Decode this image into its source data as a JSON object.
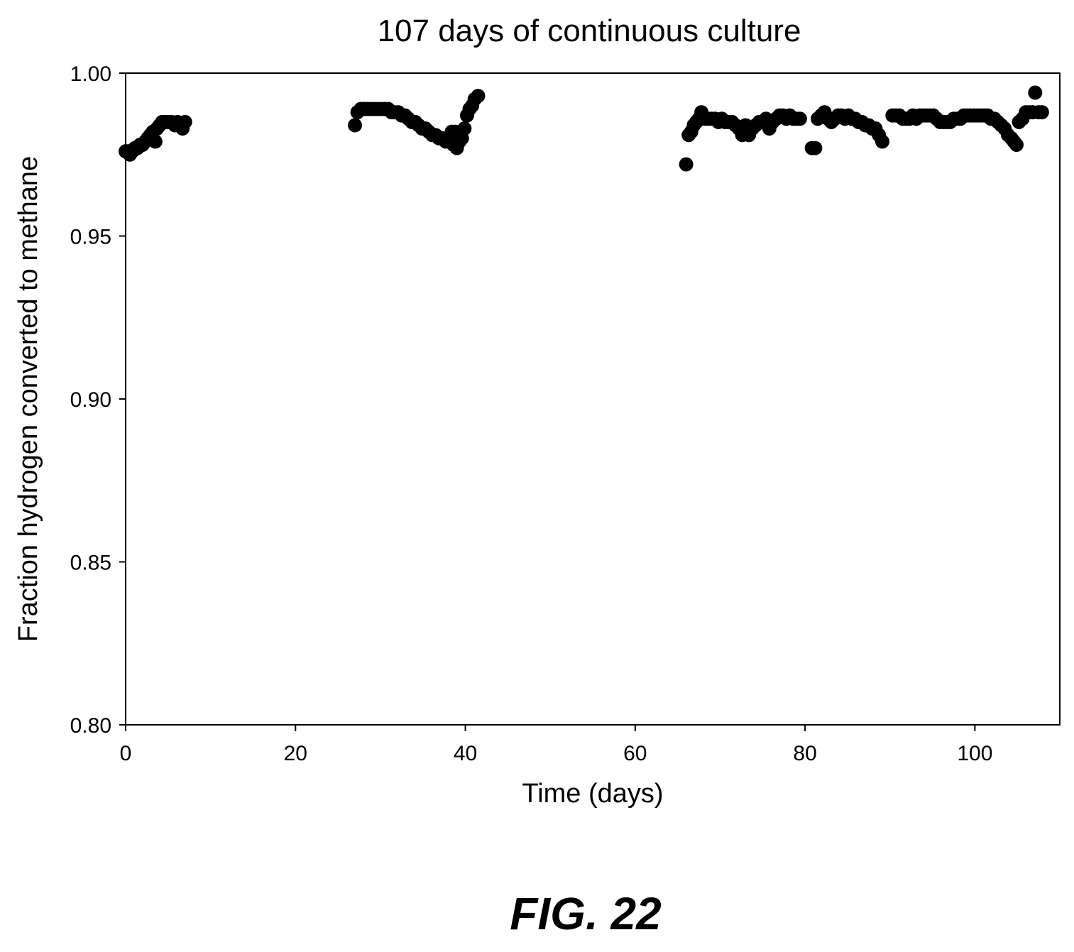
{
  "caption": "FIG. 22",
  "chart_data": {
    "type": "scatter",
    "title": "107 days of continuous culture",
    "xlabel": "Time (days)",
    "ylabel": "Fraction hydrogen converted to methane",
    "xlim": [
      0,
      110
    ],
    "ylim": [
      0.8,
      1.0
    ],
    "xticks": [
      "0",
      "20",
      "40",
      "60",
      "80",
      "100"
    ],
    "yticks": [
      "0.80",
      "0.85",
      "0.90",
      "0.95",
      "1.00"
    ],
    "grid": false,
    "marker_color": "#000000",
    "points": [
      [
        0.0,
        0.976
      ],
      [
        0.3,
        0.976
      ],
      [
        0.5,
        0.975
      ],
      [
        0.8,
        0.976
      ],
      [
        1.1,
        0.977
      ],
      [
        1.4,
        0.977
      ],
      [
        1.7,
        0.978
      ],
      [
        2.0,
        0.978
      ],
      [
        2.3,
        0.979
      ],
      [
        2.6,
        0.98
      ],
      [
        2.9,
        0.981
      ],
      [
        3.2,
        0.982
      ],
      [
        3.5,
        0.979
      ],
      [
        3.7,
        0.983
      ],
      [
        4.0,
        0.984
      ],
      [
        4.3,
        0.985
      ],
      [
        4.6,
        0.985
      ],
      [
        5.0,
        0.985
      ],
      [
        5.4,
        0.985
      ],
      [
        5.8,
        0.984
      ],
      [
        6.1,
        0.985
      ],
      [
        6.4,
        0.984
      ],
      [
        6.7,
        0.983
      ],
      [
        7.0,
        0.985
      ],
      [
        27.0,
        0.984
      ],
      [
        27.3,
        0.988
      ],
      [
        27.7,
        0.989
      ],
      [
        28.1,
        0.989
      ],
      [
        28.5,
        0.989
      ],
      [
        28.9,
        0.989
      ],
      [
        29.3,
        0.989
      ],
      [
        29.7,
        0.989
      ],
      [
        30.1,
        0.989
      ],
      [
        30.5,
        0.989
      ],
      [
        30.9,
        0.989
      ],
      [
        31.3,
        0.988
      ],
      [
        31.7,
        0.988
      ],
      [
        32.1,
        0.988
      ],
      [
        32.5,
        0.987
      ],
      [
        32.9,
        0.987
      ],
      [
        33.3,
        0.986
      ],
      [
        33.7,
        0.985
      ],
      [
        34.1,
        0.985
      ],
      [
        34.5,
        0.984
      ],
      [
        34.9,
        0.983
      ],
      [
        35.3,
        0.983
      ],
      [
        35.7,
        0.982
      ],
      [
        36.1,
        0.981
      ],
      [
        36.5,
        0.981
      ],
      [
        36.9,
        0.98
      ],
      [
        37.3,
        0.98
      ],
      [
        37.7,
        0.979
      ],
      [
        38.1,
        0.979
      ],
      [
        38.4,
        0.982
      ],
      [
        38.6,
        0.978
      ],
      [
        38.8,
        0.982
      ],
      [
        39.0,
        0.977
      ],
      [
        39.3,
        0.979
      ],
      [
        39.6,
        0.98
      ],
      [
        39.9,
        0.983
      ],
      [
        40.2,
        0.987
      ],
      [
        40.5,
        0.989
      ],
      [
        40.8,
        0.99
      ],
      [
        41.1,
        0.992
      ],
      [
        41.5,
        0.993
      ],
      [
        66.0,
        0.972
      ],
      [
        66.3,
        0.981
      ],
      [
        66.6,
        0.982
      ],
      [
        66.9,
        0.984
      ],
      [
        67.2,
        0.985
      ],
      [
        67.5,
        0.986
      ],
      [
        67.8,
        0.988
      ],
      [
        68.2,
        0.986
      ],
      [
        68.6,
        0.986
      ],
      [
        69.0,
        0.986
      ],
      [
        69.4,
        0.986
      ],
      [
        69.8,
        0.985
      ],
      [
        70.2,
        0.986
      ],
      [
        70.6,
        0.985
      ],
      [
        71.0,
        0.985
      ],
      [
        71.4,
        0.985
      ],
      [
        71.8,
        0.984
      ],
      [
        72.2,
        0.983
      ],
      [
        72.6,
        0.981
      ],
      [
        73.0,
        0.984
      ],
      [
        73.4,
        0.981
      ],
      [
        73.8,
        0.983
      ],
      [
        74.2,
        0.984
      ],
      [
        74.6,
        0.985
      ],
      [
        75.0,
        0.985
      ],
      [
        75.4,
        0.986
      ],
      [
        75.8,
        0.983
      ],
      [
        76.2,
        0.985
      ],
      [
        76.6,
        0.986
      ],
      [
        77.0,
        0.987
      ],
      [
        77.4,
        0.987
      ],
      [
        77.8,
        0.986
      ],
      [
        78.2,
        0.987
      ],
      [
        78.6,
        0.986
      ],
      [
        79.0,
        0.986
      ],
      [
        79.4,
        0.986
      ],
      [
        80.8,
        0.977
      ],
      [
        81.2,
        0.977
      ],
      [
        81.5,
        0.986
      ],
      [
        81.9,
        0.987
      ],
      [
        82.3,
        0.988
      ],
      [
        82.7,
        0.986
      ],
      [
        83.1,
        0.985
      ],
      [
        83.5,
        0.986
      ],
      [
        83.9,
        0.987
      ],
      [
        84.3,
        0.987
      ],
      [
        84.7,
        0.986
      ],
      [
        85.1,
        0.987
      ],
      [
        85.5,
        0.986
      ],
      [
        85.9,
        0.986
      ],
      [
        86.3,
        0.985
      ],
      [
        86.7,
        0.985
      ],
      [
        87.1,
        0.984
      ],
      [
        87.5,
        0.984
      ],
      [
        87.9,
        0.983
      ],
      [
        88.3,
        0.983
      ],
      [
        88.7,
        0.981
      ],
      [
        89.1,
        0.979
      ],
      [
        90.3,
        0.987
      ],
      [
        90.7,
        0.987
      ],
      [
        91.1,
        0.987
      ],
      [
        91.5,
        0.986
      ],
      [
        91.9,
        0.986
      ],
      [
        92.3,
        0.986
      ],
      [
        92.7,
        0.987
      ],
      [
        93.1,
        0.986
      ],
      [
        93.5,
        0.987
      ],
      [
        93.9,
        0.987
      ],
      [
        94.3,
        0.987
      ],
      [
        94.7,
        0.987
      ],
      [
        95.1,
        0.987
      ],
      [
        95.5,
        0.986
      ],
      [
        95.9,
        0.985
      ],
      [
        96.3,
        0.985
      ],
      [
        96.7,
        0.985
      ],
      [
        97.1,
        0.985
      ],
      [
        97.5,
        0.986
      ],
      [
        97.9,
        0.986
      ],
      [
        98.3,
        0.986
      ],
      [
        98.7,
        0.987
      ],
      [
        99.1,
        0.987
      ],
      [
        99.5,
        0.987
      ],
      [
        99.9,
        0.987
      ],
      [
        100.3,
        0.987
      ],
      [
        100.7,
        0.987
      ],
      [
        101.1,
        0.987
      ],
      [
        101.5,
        0.987
      ],
      [
        101.9,
        0.986
      ],
      [
        102.3,
        0.986
      ],
      [
        102.7,
        0.985
      ],
      [
        103.1,
        0.984
      ],
      [
        103.5,
        0.983
      ],
      [
        103.9,
        0.981
      ],
      [
        104.3,
        0.98
      ],
      [
        104.6,
        0.979
      ],
      [
        104.9,
        0.978
      ],
      [
        105.2,
        0.985
      ],
      [
        105.6,
        0.986
      ],
      [
        106.0,
        0.988
      ],
      [
        106.4,
        0.988
      ],
      [
        106.8,
        0.988
      ],
      [
        107.1,
        0.994
      ],
      [
        107.5,
        0.988
      ],
      [
        107.9,
        0.988
      ]
    ]
  }
}
